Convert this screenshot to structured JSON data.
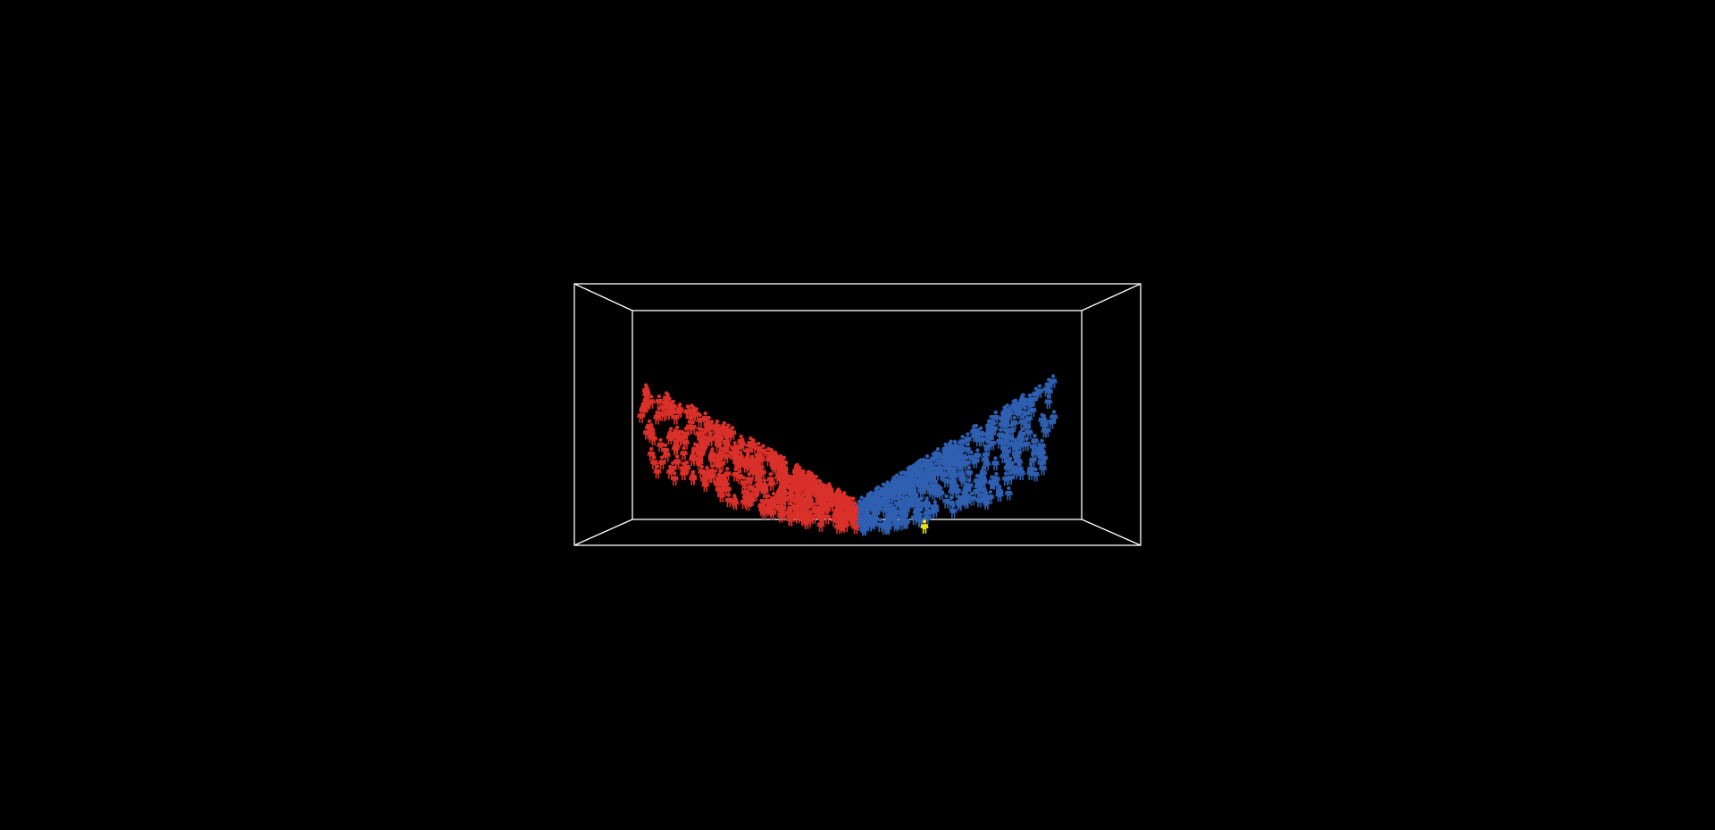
{
  "chart_data": {
    "type": "scatter",
    "projection": "3d-box",
    "marker": "person-icon",
    "grid": false,
    "legend": "none",
    "series": [
      {
        "color": "#d9302a",
        "trend": "descending",
        "count": 420
      },
      {
        "color": "#2f5fb0",
        "trend": "ascending",
        "count": 420
      },
      {
        "color": "#f2e60c",
        "highlighted": true,
        "count": 1
      }
    ]
  },
  "colors": {
    "background": "#000000",
    "box": "#ffffff"
  }
}
